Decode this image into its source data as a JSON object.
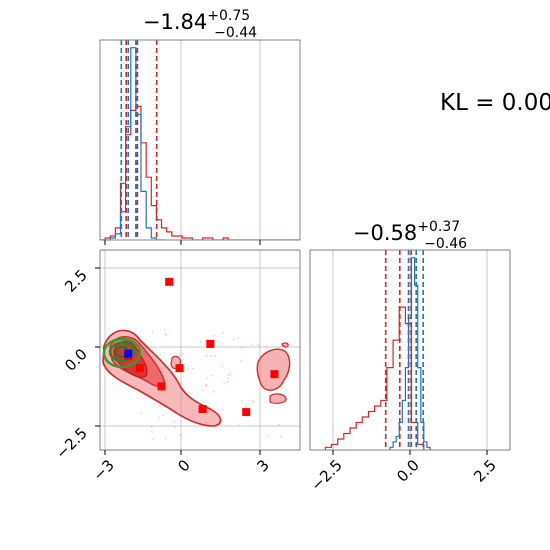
{
  "chart_data": [
    {
      "type": "histogram",
      "panel": "marginal-param-1",
      "title": {
        "median": "−1.84",
        "plus": "+0.75",
        "minus": "−0.44"
      },
      "xlim": [
        -3.3,
        4.5
      ],
      "grid": true,
      "series": [
        {
          "color": "#d62728",
          "bin_edges": [
            -3.3,
            -3.1,
            -2.9,
            -2.7,
            -2.5,
            -2.3,
            -2.1,
            -1.9,
            -1.7,
            -1.5,
            -1.3,
            -1.1,
            -0.9,
            -0.7,
            -0.5,
            -0.3,
            -0.1,
            0.1,
            0.3,
            0.5,
            0.7,
            0.9,
            1.1,
            1.3,
            1.5,
            1.7,
            1.9,
            2.1,
            2.3,
            2.5,
            2.7,
            2.9,
            3.1,
            3.3,
            3.5,
            3.7,
            3.9,
            4.1,
            4.3,
            4.5
          ],
          "counts": [
            0,
            1,
            2,
            6,
            28,
            52,
            64,
            66,
            48,
            31,
            17,
            10,
            6,
            4,
            2,
            2,
            1,
            1,
            0,
            0,
            1,
            1,
            0,
            0,
            1,
            0,
            0,
            0,
            0,
            0,
            0,
            0,
            0,
            0,
            0,
            0,
            0,
            0,
            0
          ],
          "quantiles": [
            -2.28,
            -1.84,
            -1.09
          ]
        },
        {
          "color": "#1f77b4",
          "bin_edges": [
            -3.3,
            -3.1,
            -2.9,
            -2.7,
            -2.5,
            -2.3,
            -2.1,
            -1.9,
            -1.7,
            -1.5,
            -1.3,
            -1.1,
            -0.9,
            -0.7
          ],
          "counts": [
            0,
            0,
            1,
            3,
            14,
            56,
            95,
            62,
            24,
            6,
            1,
            0,
            0
          ],
          "quantiles": [
            -2.47,
            -2.2,
            -1.9
          ]
        }
      ]
    },
    {
      "type": "histogram",
      "panel": "marginal-param-2",
      "title": {
        "median": "−0.58",
        "plus": "+0.37",
        "minus": "−0.46"
      },
      "xlim": [
        -3.5,
        3.0
      ],
      "xticks": [
        "−2.5",
        "0.0",
        "2.5"
      ],
      "grid": true,
      "series": [
        {
          "color": "#d62728",
          "bin_edges": [
            -3.0,
            -2.8,
            -2.6,
            -2.4,
            -2.2,
            -2.0,
            -1.8,
            -1.6,
            -1.4,
            -1.2,
            -1.0,
            -0.8,
            -0.6,
            -0.4,
            -0.2,
            0.0,
            0.2
          ],
          "counts": [
            1,
            2,
            4,
            6,
            8,
            10,
            12,
            14,
            16,
            18,
            30,
            40,
            52,
            46,
            10,
            2
          ],
          "quantiles": [
            -1.04,
            -0.58,
            -0.21
          ]
        },
        {
          "color": "#1f77b4",
          "bin_edges": [
            -0.9,
            -0.8,
            -0.7,
            -0.6,
            -0.5,
            -0.4,
            -0.3,
            -0.2,
            -0.1,
            0.0,
            0.1,
            0.2,
            0.3,
            0.4
          ],
          "counts": [
            1,
            3,
            5,
            10,
            18,
            30,
            48,
            70,
            60,
            30,
            10,
            3,
            1
          ],
          "quantiles": [
            -0.3,
            -0.05,
            0.18
          ]
        }
      ]
    },
    {
      "type": "contour-scatter",
      "panel": "joint",
      "xlim": [
        -3.3,
        4.5
      ],
      "ylim": [
        -3.3,
        3.3
      ],
      "xticks": [
        "−3",
        "0",
        "3"
      ],
      "yticks": [
        "2.5",
        "0.0",
        "−2.5"
      ],
      "grid": true,
      "series": [
        {
          "marker": "square",
          "color": "#ff0000",
          "points": [
            [
              -0.6,
              2.25
            ],
            [
              1.0,
              0.2
            ],
            [
              -0.2,
              -0.6
            ],
            [
              3.5,
              -0.8
            ],
            [
              -0.9,
              -1.2
            ],
            [
              0.7,
              -1.95
            ],
            [
              2.4,
              -2.05
            ],
            [
              -1.75,
              -0.6
            ],
            [
              -2.2,
              -0.2
            ]
          ]
        },
        {
          "marker": "square",
          "color": "#0000ff",
          "points": [
            [
              -2.2,
              -0.12
            ]
          ]
        }
      ]
    }
  ],
  "annotation": {
    "text": "KL = 0.00"
  }
}
